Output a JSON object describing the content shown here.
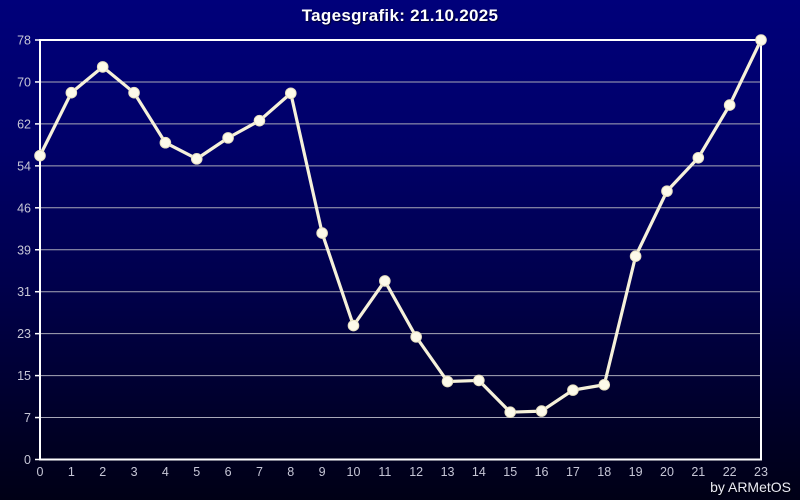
{
  "title": "Tagesgrafik: 21.10.2025",
  "credit": "by ARMetOS",
  "chart_data": {
    "type": "line",
    "title": "Tagesgrafik: 21.10.2025",
    "xlabel": "",
    "ylabel": "",
    "x": [
      0,
      1,
      2,
      3,
      4,
      5,
      6,
      7,
      8,
      9,
      10,
      11,
      12,
      13,
      14,
      15,
      16,
      17,
      18,
      19,
      20,
      21,
      22,
      23
    ],
    "values": [
      56.5,
      68.2,
      73.0,
      68.2,
      58.9,
      55.9,
      59.8,
      63.0,
      68.1,
      42.1,
      24.9,
      33.2,
      22.8,
      14.5,
      14.7,
      8.8,
      9.0,
      12.9,
      13.9,
      37.8,
      49.9,
      56.1,
      65.9,
      78.0
    ],
    "ylim": [
      0,
      78
    ],
    "grid": true,
    "legend_position": "none",
    "marker": "circle"
  },
  "y_axis": {
    "tick_labels": [
      "78",
      "70",
      "62",
      "54",
      "46",
      "39",
      "31",
      "23",
      "15",
      "7",
      "0"
    ]
  },
  "x_axis": {
    "tick_labels": [
      "0",
      "1",
      "2",
      "3",
      "4",
      "5",
      "6",
      "7",
      "8",
      "9",
      "10",
      "11",
      "12",
      "13",
      "14",
      "15",
      "16",
      "17",
      "18",
      "19",
      "20",
      "21",
      "22",
      "23"
    ]
  },
  "colors": {
    "grid": "#a8a8b8",
    "frame": "#ffffff",
    "line": "#f6f1da",
    "marker_fill": "#fdfaea",
    "marker_stroke": "#e8e1c2",
    "tick_label": "#c6c6d6",
    "title": "#ffffff",
    "credit": "#eaeaf4"
  }
}
